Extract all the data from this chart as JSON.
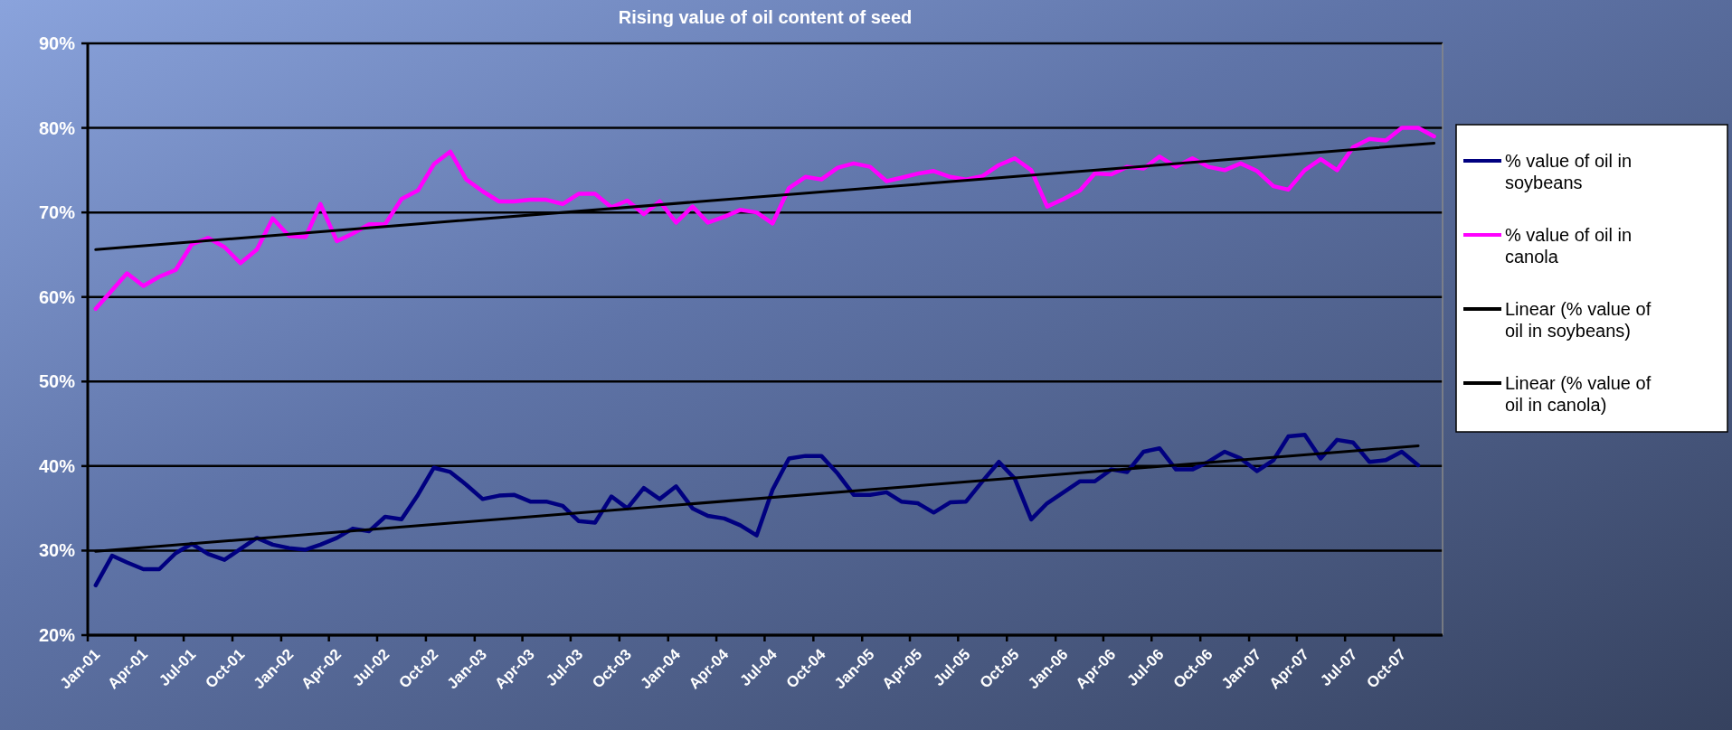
{
  "chart_data": {
    "type": "line",
    "title": "Rising value of oil content of seed",
    "x": [
      "2001-01-16",
      "2001-02-16",
      "2001-03-16",
      "2001-04-16",
      "2001-05-16",
      "2001-06-16",
      "2001-07-16",
      "2001-08-16",
      "2001-09-16",
      "2001-10-16",
      "2001-11-16",
      "2001-12-16",
      "2002-01-16",
      "2002-02-16",
      "2002-03-16",
      "2002-04-16",
      "2002-05-16",
      "2002-06-16",
      "2002-07-16",
      "2002-08-16",
      "2002-09-16",
      "2002-10-16",
      "2002-11-16",
      "2002-12-16",
      "2003-01-16",
      "2003-02-16",
      "2003-03-16",
      "2003-04-16",
      "2003-05-16",
      "2003-06-16",
      "2003-07-16",
      "2003-08-16",
      "2003-09-16",
      "2003-10-16",
      "2003-11-16",
      "2003-12-16",
      "2004-01-16",
      "2004-02-16",
      "2004-03-16",
      "2004-04-16",
      "2004-05-16",
      "2004-06-16",
      "2004-07-16",
      "2004-08-16",
      "2004-09-16",
      "2004-10-16",
      "2004-11-16",
      "2004-12-16",
      "2005-01-16",
      "2005-02-16",
      "2005-03-16",
      "2005-04-16",
      "2005-05-16",
      "2005-06-16",
      "2005-07-16",
      "2005-08-16",
      "2005-09-16",
      "2005-10-16",
      "2005-11-16",
      "2005-12-16",
      "2006-01-16",
      "2006-02-16",
      "2006-03-16",
      "2006-04-16",
      "2006-05-16",
      "2006-06-16",
      "2006-07-16",
      "2006-08-16",
      "2006-09-16",
      "2006-10-16",
      "2006-11-16",
      "2006-12-16",
      "2007-01-16",
      "2007-02-16",
      "2007-03-16",
      "2007-04-16",
      "2007-05-16",
      "2007-06-16",
      "2007-07-16",
      "2007-08-16",
      "2007-09-16",
      "2007-10-16",
      "2007-11-16",
      "2007-12-16"
    ],
    "series": [
      {
        "name": "% value of oil in soybeans",
        "color": "#000080",
        "values": [
          25.9,
          29.4,
          28.6,
          27.8,
          27.8,
          29.7,
          30.8,
          29.6,
          28.9,
          30.2,
          31.5,
          30.7,
          30.3,
          30.1,
          30.7,
          31.5,
          32.6,
          32.3,
          34.0,
          33.7,
          36.6,
          39.8,
          39.3,
          37.8,
          36.1,
          36.5,
          36.6,
          35.8,
          35.8,
          35.3,
          33.5,
          33.3,
          36.4,
          35.0,
          37.4,
          36.1,
          37.6,
          35.0,
          34.1,
          33.8,
          33.0,
          31.8,
          37.2,
          40.9,
          41.2,
          41.2,
          39.1,
          36.6,
          36.6,
          36.9,
          35.8,
          35.6,
          34.5,
          35.7,
          35.8,
          38.2,
          40.5,
          38.5,
          33.7,
          35.6,
          36.9,
          38.2,
          38.2,
          39.6,
          39.3,
          41.7,
          42.1,
          39.6,
          39.6,
          40.5,
          41.7,
          40.9,
          39.4,
          40.7,
          43.5,
          43.7,
          40.9,
          43.1,
          42.8,
          40.5,
          40.7,
          41.7,
          40.1,
          null
        ]
      },
      {
        "name": "% value of oil in canola",
        "color": "#ff00ff",
        "values": [
          58.6,
          60.8,
          62.8,
          61.3,
          62.4,
          63.2,
          66.2,
          67.0,
          65.9,
          64.0,
          65.6,
          69.3,
          67.2,
          67.1,
          71.0,
          66.6,
          67.5,
          68.6,
          68.6,
          71.6,
          72.6,
          75.7,
          77.2,
          73.9,
          72.5,
          71.3,
          71.3,
          71.5,
          71.5,
          71.0,
          72.2,
          72.2,
          70.6,
          71.4,
          69.8,
          71.3,
          68.8,
          70.7,
          68.8,
          69.5,
          70.3,
          70.0,
          68.7,
          72.9,
          74.2,
          73.9,
          75.3,
          75.8,
          75.4,
          73.7,
          74.1,
          74.6,
          74.9,
          74.2,
          73.9,
          74.3,
          75.6,
          76.4,
          75.0,
          70.7,
          71.6,
          72.6,
          74.6,
          74.5,
          75.4,
          75.2,
          76.6,
          75.4,
          76.4,
          75.4,
          75.0,
          75.8,
          74.9,
          73.1,
          72.7,
          75.0,
          76.3,
          75.0,
          77.7,
          78.7,
          78.5,
          80.0,
          80.0,
          79.0
        ]
      },
      {
        "name": "Linear (% value of oil in soybeans)",
        "color": "#000000",
        "x": [
          "2001-01-16",
          "2007-11-16"
        ],
        "values": [
          29.9,
          42.4
        ]
      },
      {
        "name": "Linear (% value of oil in canola)",
        "color": "#000000",
        "x": [
          "2001-01-16",
          "2007-12-16"
        ],
        "values": [
          65.6,
          78.2
        ]
      }
    ],
    "xlim": [
      "2001-01",
      "2008-01"
    ],
    "xticks": [
      {
        "value": "2001-01",
        "label": "Jan-01"
      },
      {
        "value": "2001-04",
        "label": "Apr-01"
      },
      {
        "value": "2001-07",
        "label": "Jul-01"
      },
      {
        "value": "2001-10",
        "label": "Oct-01"
      },
      {
        "value": "2002-01",
        "label": "Jan-02"
      },
      {
        "value": "2002-04",
        "label": "Apr-02"
      },
      {
        "value": "2002-07",
        "label": "Jul-02"
      },
      {
        "value": "2002-10",
        "label": "Oct-02"
      },
      {
        "value": "2003-01",
        "label": "Jan-03"
      },
      {
        "value": "2003-04",
        "label": "Apr-03"
      },
      {
        "value": "2003-07",
        "label": "Jul-03"
      },
      {
        "value": "2003-10",
        "label": "Oct-03"
      },
      {
        "value": "2004-01",
        "label": "Jan-04"
      },
      {
        "value": "2004-04",
        "label": "Apr-04"
      },
      {
        "value": "2004-07",
        "label": "Jul-04"
      },
      {
        "value": "2004-10",
        "label": "Oct-04"
      },
      {
        "value": "2005-01",
        "label": "Jan-05"
      },
      {
        "value": "2005-04",
        "label": "Apr-05"
      },
      {
        "value": "2005-07",
        "label": "Jul-05"
      },
      {
        "value": "2005-10",
        "label": "Oct-05"
      },
      {
        "value": "2006-01",
        "label": "Jan-06"
      },
      {
        "value": "2006-04",
        "label": "Apr-06"
      },
      {
        "value": "2006-07",
        "label": "Jul-06"
      },
      {
        "value": "2006-10",
        "label": "Oct-06"
      },
      {
        "value": "2007-01",
        "label": "Jan-07"
      },
      {
        "value": "2007-04",
        "label": "Apr-07"
      },
      {
        "value": "2007-07",
        "label": "Jul-07"
      },
      {
        "value": "2007-10",
        "label": "Oct-07"
      }
    ],
    "ylim": [
      20,
      90
    ],
    "yticks": [
      {
        "value": 20,
        "label": "20%"
      },
      {
        "value": 30,
        "label": "30%"
      },
      {
        "value": 40,
        "label": "40%"
      },
      {
        "value": 50,
        "label": "50%"
      },
      {
        "value": 60,
        "label": "60%"
      },
      {
        "value": 70,
        "label": "70%"
      },
      {
        "value": 80,
        "label": "80%"
      },
      {
        "value": 90,
        "label": "90%"
      }
    ],
    "grid": "y",
    "legend": "right",
    "marker": "none",
    "line_style": "solid"
  }
}
